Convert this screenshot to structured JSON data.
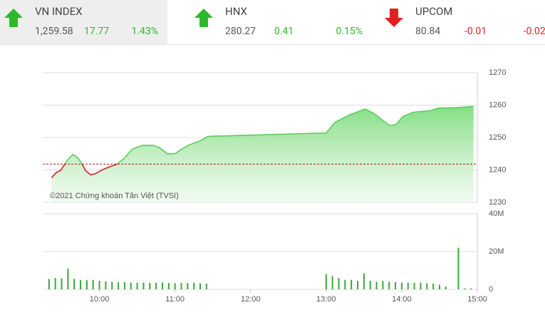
{
  "header": {
    "indices": [
      {
        "name": "VN INDEX",
        "value": "1,259.58",
        "change": "17.77",
        "percent": "1.43%",
        "direction": "up",
        "color": "#2eb82e",
        "highlight": true
      },
      {
        "name": "HNX",
        "value": "280.27",
        "change": "0.41",
        "percent": "0.15%",
        "direction": "up",
        "color": "#2eb82e",
        "highlight": false
      },
      {
        "name": "UPCOM",
        "value": "80.84",
        "change": "-0.01",
        "percent": "-0.02%",
        "direction": "down",
        "color": "#e02020",
        "highlight": false
      }
    ]
  },
  "chart_data": [
    {
      "type": "area",
      "annotation": "©2021 Chứng khoán Tân Việt (TVSI)",
      "x": [
        "9:22",
        "9:26",
        "9:29",
        "9:32",
        "9:35",
        "9:39",
        "9:43",
        "9:46",
        "9:49",
        "9:53",
        "9:57",
        "10:03",
        "10:09",
        "10:14",
        "10:20",
        "10:26",
        "10:34",
        "10:43",
        "10:48",
        "10:54",
        "11:00",
        "11:05",
        "11:11",
        "11:20",
        "11:26",
        "11:30",
        "13:00",
        "13:07",
        "13:18",
        "13:31",
        "13:38",
        "13:50",
        "13:55",
        "14:01",
        "14:09",
        "14:23",
        "14:29",
        "14:43",
        "14:57"
      ],
      "values": [
        1237.6,
        1239.3,
        1239.8,
        1241.5,
        1243.3,
        1244.8,
        1243.7,
        1242,
        1239.8,
        1238.5,
        1238.9,
        1240.2,
        1241.1,
        1241.8,
        1243.7,
        1246.4,
        1247.6,
        1247.6,
        1246.8,
        1245,
        1245,
        1246.4,
        1247.7,
        1249,
        1250.3,
        1250.4,
        1251.4,
        1254.7,
        1256.9,
        1258.8,
        1257.4,
        1253.8,
        1253.9,
        1256.5,
        1257.8,
        1258.3,
        1259.1,
        1259.2,
        1259.6
      ],
      "reference": 1241.81,
      "color": "#5ccc5c",
      "below_color": "#d42020",
      "xlim": [
        "9:15",
        "15:00"
      ],
      "ylim": [
        1230,
        1270
      ],
      "yticks": [
        1230,
        1240,
        1250,
        1260,
        1270
      ],
      "grid": true
    },
    {
      "type": "bar",
      "color": "#3aa63a",
      "x": [
        "9:20",
        "9:25",
        "9:30",
        "9:35",
        "9:40",
        "9:45",
        "9:50",
        "9:55",
        "10:00",
        "10:05",
        "10:10",
        "10:15",
        "10:20",
        "10:25",
        "10:30",
        "10:35",
        "10:40",
        "10:45",
        "10:50",
        "10:55",
        "11:00",
        "11:05",
        "11:10",
        "11:15",
        "11:20",
        "11:25",
        "13:00",
        "13:05",
        "13:10",
        "13:15",
        "13:20",
        "13:25",
        "13:30",
        "13:35",
        "13:40",
        "13:45",
        "13:50",
        "13:55",
        "14:00",
        "14:05",
        "14:10",
        "14:15",
        "14:20",
        "14:25",
        "14:30",
        "14:35",
        "14:45",
        "14:50",
        "14:55"
      ],
      "values": [
        5500000,
        6000000,
        5800000,
        11000000,
        5500000,
        5000000,
        4800000,
        5000000,
        4500000,
        4200000,
        4000000,
        3800000,
        3800000,
        3600000,
        3500000,
        3600000,
        3400000,
        3500000,
        3600000,
        3400000,
        3200000,
        3400000,
        3300000,
        3500000,
        3200000,
        3000000,
        8000000,
        7000000,
        6000000,
        5000000,
        5000000,
        4500000,
        8500000,
        4500000,
        4000000,
        4500000,
        4000000,
        3800000,
        3600000,
        3500000,
        3400000,
        3500000,
        3200000,
        3000000,
        2500000,
        1500000,
        22000000,
        600000,
        500000
      ],
      "xlim": [
        "9:15",
        "15:00"
      ],
      "ylim": [
        0,
        40000000
      ],
      "yticks": [
        0,
        {
          "value": 20000000,
          "label": "20M"
        },
        {
          "value": 40000000,
          "label": "40M"
        }
      ],
      "xticks": [
        "10:00",
        "11:00",
        "12:00",
        "13:00",
        "14:00",
        "15:00"
      ],
      "grid": true
    }
  ]
}
